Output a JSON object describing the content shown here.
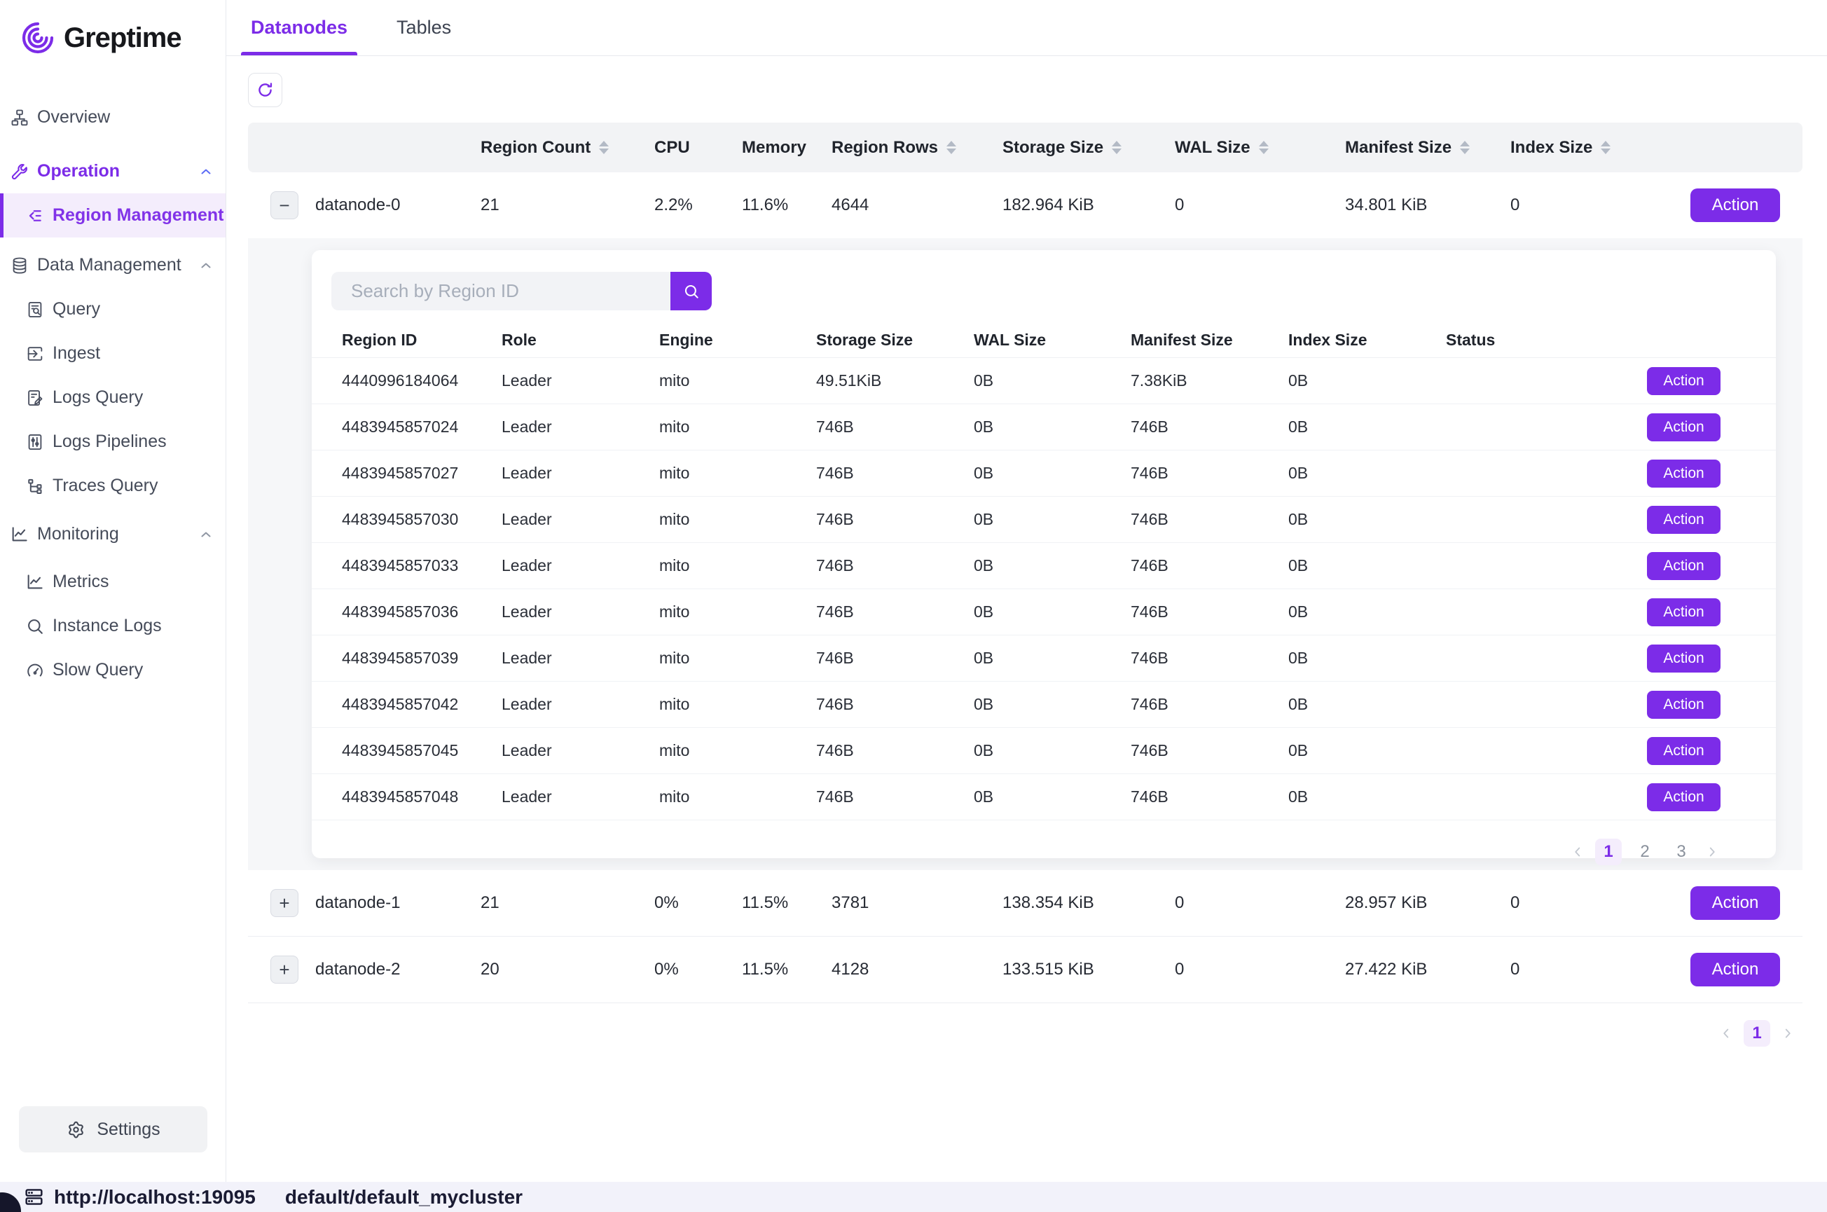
{
  "colors": {
    "accent": "#7c2ce8",
    "accent_soft": "#f4edfc",
    "header_bg": "#f2f3f5",
    "expand_bg": "#f6f7f9",
    "statusbar_bg": "#f2f2fa"
  },
  "sidebar": {
    "logo_text": "Greptime",
    "settings_label": "Settings",
    "items": [
      {
        "id": "overview",
        "label": "Overview",
        "icon": "sitemap-icon",
        "level": 1
      },
      {
        "id": "operation",
        "label": "Operation",
        "icon": "wrench-icon",
        "level": 1,
        "accent": true,
        "chevron": "up"
      },
      {
        "id": "region-management",
        "label": "Region Management",
        "icon": "region-management-icon",
        "level": 2,
        "active": true
      },
      {
        "id": "data-management",
        "label": "Data Management",
        "icon": "database-icon",
        "level": 1,
        "chevron": "up"
      },
      {
        "id": "query",
        "label": "Query",
        "icon": "query-icon",
        "level": 2
      },
      {
        "id": "ingest",
        "label": "Ingest",
        "icon": "ingest-icon",
        "level": 2
      },
      {
        "id": "logs-query",
        "label": "Logs Query",
        "icon": "logs-query-icon",
        "level": 2
      },
      {
        "id": "logs-pipelines",
        "label": "Logs Pipelines",
        "icon": "logs-pipelines-icon",
        "level": 2
      },
      {
        "id": "traces-query",
        "label": "Traces Query",
        "icon": "traces-query-icon",
        "level": 2
      },
      {
        "id": "monitoring",
        "label": "Monitoring",
        "icon": "monitoring-icon",
        "level": 1,
        "chevron": "up"
      },
      {
        "id": "metrics",
        "label": "Metrics",
        "icon": "metrics-icon",
        "level": 2
      },
      {
        "id": "instance-logs",
        "label": "Instance Logs",
        "icon": "instance-logs-icon",
        "level": 2
      },
      {
        "id": "slow-query",
        "label": "Slow Query",
        "icon": "slow-query-icon",
        "level": 2
      }
    ]
  },
  "tabs": [
    {
      "label": "Datanodes",
      "active": true
    },
    {
      "label": "Tables",
      "active": false
    }
  ],
  "datanodes_table": {
    "columns": [
      "Region Count",
      "CPU",
      "Memory",
      "Region Rows",
      "Storage Size",
      "WAL Size",
      "Manifest Size",
      "Index Size"
    ],
    "sortable": [
      true,
      false,
      false,
      true,
      true,
      true,
      true,
      true
    ],
    "action_label": "Action",
    "rows": [
      {
        "name": "datanode-0",
        "expanded": true,
        "region_count": "21",
        "cpu": "2.2%",
        "memory": "11.6%",
        "region_rows": "4644",
        "storage_size": "182.964 KiB",
        "wal_size": "0",
        "manifest_size": "34.801 KiB",
        "index_size": "0"
      },
      {
        "name": "datanode-1",
        "expanded": false,
        "region_count": "21",
        "cpu": "0%",
        "memory": "11.5%",
        "region_rows": "3781",
        "storage_size": "138.354 KiB",
        "wal_size": "0",
        "manifest_size": "28.957 KiB",
        "index_size": "0"
      },
      {
        "name": "datanode-2",
        "expanded": false,
        "region_count": "20",
        "cpu": "0%",
        "memory": "11.5%",
        "region_rows": "4128",
        "storage_size": "133.515 KiB",
        "wal_size": "0",
        "manifest_size": "27.422 KiB",
        "index_size": "0"
      }
    ],
    "pagination": {
      "current": "1",
      "pages": [
        "1"
      ]
    }
  },
  "region_panel": {
    "search_placeholder": "Search by Region ID",
    "columns": [
      "Region ID",
      "Role",
      "Engine",
      "Storage Size",
      "WAL Size",
      "Manifest Size",
      "Index Size",
      "Status"
    ],
    "action_label": "Action",
    "rows": [
      {
        "region_id": "4440996184064",
        "role": "Leader",
        "engine": "mito",
        "storage_size": "49.51KiB",
        "wal_size": "0B",
        "manifest_size": "7.38KiB",
        "index_size": "0B",
        "status": ""
      },
      {
        "region_id": "4483945857024",
        "role": "Leader",
        "engine": "mito",
        "storage_size": "746B",
        "wal_size": "0B",
        "manifest_size": "746B",
        "index_size": "0B",
        "status": ""
      },
      {
        "region_id": "4483945857027",
        "role": "Leader",
        "engine": "mito",
        "storage_size": "746B",
        "wal_size": "0B",
        "manifest_size": "746B",
        "index_size": "0B",
        "status": ""
      },
      {
        "region_id": "4483945857030",
        "role": "Leader",
        "engine": "mito",
        "storage_size": "746B",
        "wal_size": "0B",
        "manifest_size": "746B",
        "index_size": "0B",
        "status": ""
      },
      {
        "region_id": "4483945857033",
        "role": "Leader",
        "engine": "mito",
        "storage_size": "746B",
        "wal_size": "0B",
        "manifest_size": "746B",
        "index_size": "0B",
        "status": ""
      },
      {
        "region_id": "4483945857036",
        "role": "Leader",
        "engine": "mito",
        "storage_size": "746B",
        "wal_size": "0B",
        "manifest_size": "746B",
        "index_size": "0B",
        "status": ""
      },
      {
        "region_id": "4483945857039",
        "role": "Leader",
        "engine": "mito",
        "storage_size": "746B",
        "wal_size": "0B",
        "manifest_size": "746B",
        "index_size": "0B",
        "status": ""
      },
      {
        "region_id": "4483945857042",
        "role": "Leader",
        "engine": "mito",
        "storage_size": "746B",
        "wal_size": "0B",
        "manifest_size": "746B",
        "index_size": "0B",
        "status": ""
      },
      {
        "region_id": "4483945857045",
        "role": "Leader",
        "engine": "mito",
        "storage_size": "746B",
        "wal_size": "0B",
        "manifest_size": "746B",
        "index_size": "0B",
        "status": ""
      },
      {
        "region_id": "4483945857048",
        "role": "Leader",
        "engine": "mito",
        "storage_size": "746B",
        "wal_size": "0B",
        "manifest_size": "746B",
        "index_size": "0B",
        "status": ""
      }
    ],
    "pagination": {
      "current": "1",
      "pages": [
        "1",
        "2",
        "3"
      ]
    }
  },
  "status_bar": {
    "url": "http://localhost:19095",
    "cluster": "default/default_mycluster"
  }
}
